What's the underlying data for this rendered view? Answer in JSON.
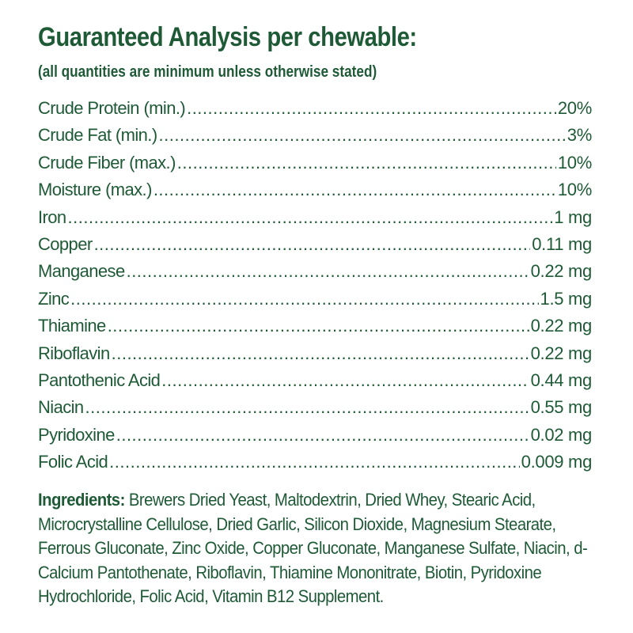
{
  "header": {
    "title": "Guaranteed Analysis per chewable:",
    "subtitle": "(all quantities are minimum unless otherwise stated)"
  },
  "analysis": [
    {
      "label": "Crude Protein (min.)",
      "value": "20%"
    },
    {
      "label": "Crude Fat (min.)",
      "value": "3%"
    },
    {
      "label": "Crude Fiber (max.)",
      "value": "10%"
    },
    {
      "label": "Moisture (max.)",
      "value": "10%"
    },
    {
      "label": "Iron",
      "value": "1 mg"
    },
    {
      "label": "Copper",
      "value": "0.11 mg"
    },
    {
      "label": "Manganese",
      "value": "0.22 mg"
    },
    {
      "label": "Zinc",
      "value": "1.5 mg"
    },
    {
      "label": "Thiamine",
      "value": "0.22 mg"
    },
    {
      "label": "Riboflavin",
      "value": "0.22 mg"
    },
    {
      "label": "Pantothenic Acid",
      "value": "0.44 mg"
    },
    {
      "label": "Niacin",
      "value": "0.55 mg"
    },
    {
      "label": "Pyridoxine",
      "value": "0.02 mg"
    },
    {
      "label": "Folic Acid",
      "value": "0.009 mg"
    }
  ],
  "ingredients": {
    "label": "Ingredients:",
    "text": "Brewers Dried Yeast, Maltodextrin, Dried Whey, Stearic Acid, Microcrystalline Cellulose, Dried Garlic, Silicon Dioxide, Magnesium Stearate, Ferrous Gluconate, Zinc Oxide, Copper Gluconate, Manganese Sulfate, Niacin, d-Calcium Pantothenate, Riboflavin, Thiamine Mononitrate, Biotin, Pyridoxine Hydrochloride, Folic Acid, Vitamin B12 Supplement."
  }
}
